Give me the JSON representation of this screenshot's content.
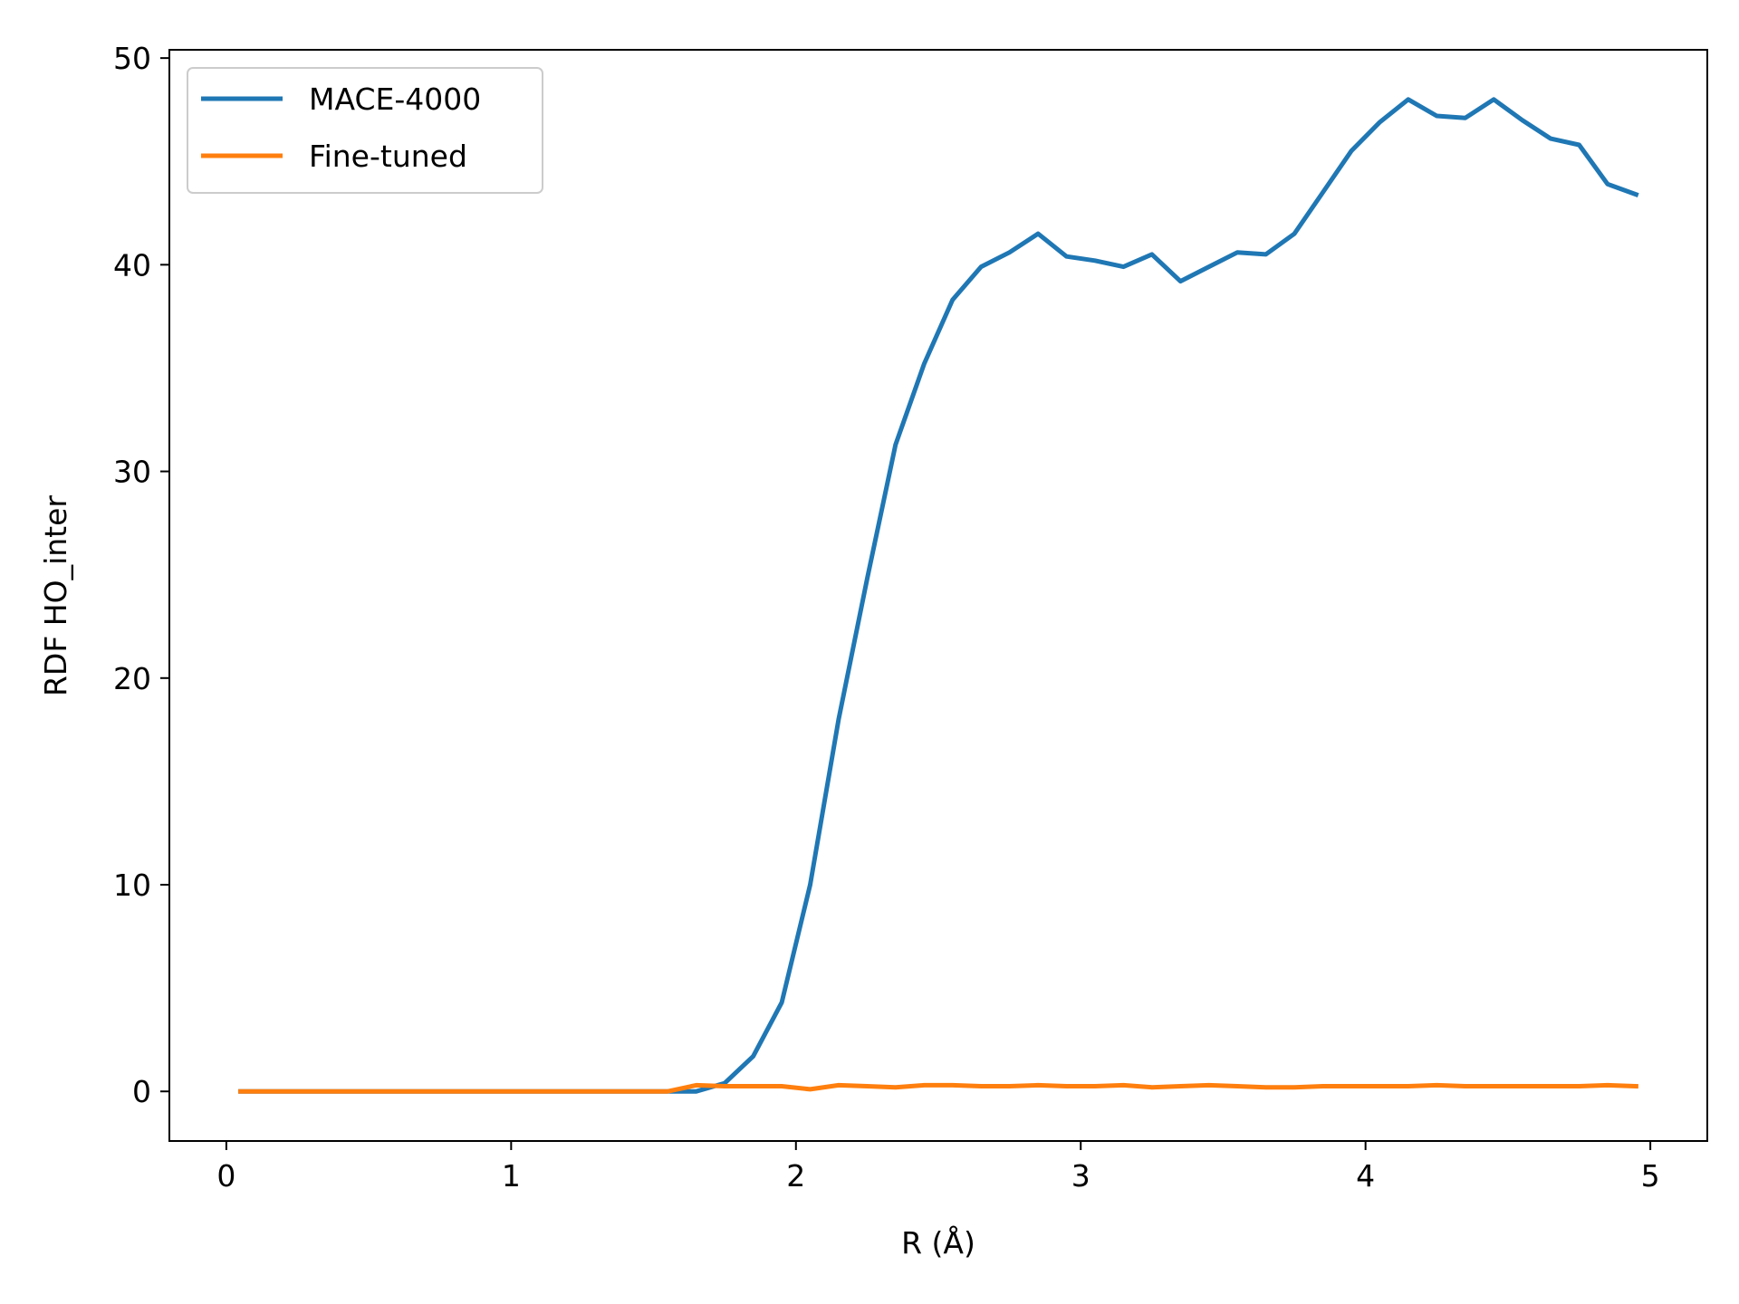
{
  "chart_data": {
    "type": "line",
    "title": "",
    "xlabel": "R (Å)",
    "ylabel": "RDF HO_inter",
    "xlim": [
      -0.2,
      5.2
    ],
    "ylim": [
      -2.4,
      50.4
    ],
    "xticks": [
      0,
      1,
      2,
      3,
      4,
      5
    ],
    "yticks": [
      0,
      10,
      20,
      30,
      40,
      50
    ],
    "xtick_labels": [
      "0",
      "1",
      "2",
      "3",
      "4",
      "5"
    ],
    "ytick_labels": [
      "0",
      "10",
      "20",
      "30",
      "40",
      "50"
    ],
    "grid": false,
    "legend_position": "top-left",
    "x": [
      0.05,
      0.15,
      0.25,
      0.35,
      0.45,
      0.55,
      0.65,
      0.75,
      0.85,
      0.95,
      1.05,
      1.15,
      1.25,
      1.35,
      1.45,
      1.55,
      1.65,
      1.75,
      1.85,
      1.95,
      2.05,
      2.15,
      2.25,
      2.35,
      2.45,
      2.55,
      2.65,
      2.75,
      2.85,
      2.95,
      3.05,
      3.15,
      3.25,
      3.35,
      3.45,
      3.55,
      3.65,
      3.75,
      3.85,
      3.95,
      4.05,
      4.15,
      4.25,
      4.35,
      4.45,
      4.55,
      4.65,
      4.75,
      4.85,
      4.95
    ],
    "series": [
      {
        "name": "MACE-4000",
        "color": "#1f77b4",
        "values": [
          0,
          0,
          0,
          0,
          0,
          0,
          0,
          0,
          0,
          0,
          0,
          0,
          0,
          0,
          0,
          0,
          0,
          0.4,
          1.7,
          4.3,
          10.0,
          18.0,
          24.8,
          31.3,
          35.2,
          38.3,
          39.9,
          40.6,
          41.5,
          40.4,
          40.2,
          39.9,
          40.5,
          39.2,
          39.9,
          40.6,
          40.5,
          41.5,
          43.5,
          45.5,
          46.9,
          48.0,
          47.2,
          47.1,
          48.0,
          47.0,
          46.1,
          45.8,
          43.9,
          43.4
        ]
      },
      {
        "name": "Fine-tuned",
        "color": "#ff7f0e",
        "values": [
          0,
          0,
          0,
          0,
          0,
          0,
          0,
          0,
          0,
          0,
          0,
          0,
          0,
          0,
          0,
          0,
          0.3,
          0.25,
          0.25,
          0.25,
          0.1,
          0.3,
          0.25,
          0.2,
          0.3,
          0.3,
          0.25,
          0.25,
          0.3,
          0.25,
          0.25,
          0.3,
          0.2,
          0.25,
          0.3,
          0.25,
          0.2,
          0.2,
          0.25,
          0.25,
          0.25,
          0.25,
          0.3,
          0.25,
          0.25,
          0.25,
          0.25,
          0.25,
          0.3,
          0.25
        ]
      }
    ]
  }
}
